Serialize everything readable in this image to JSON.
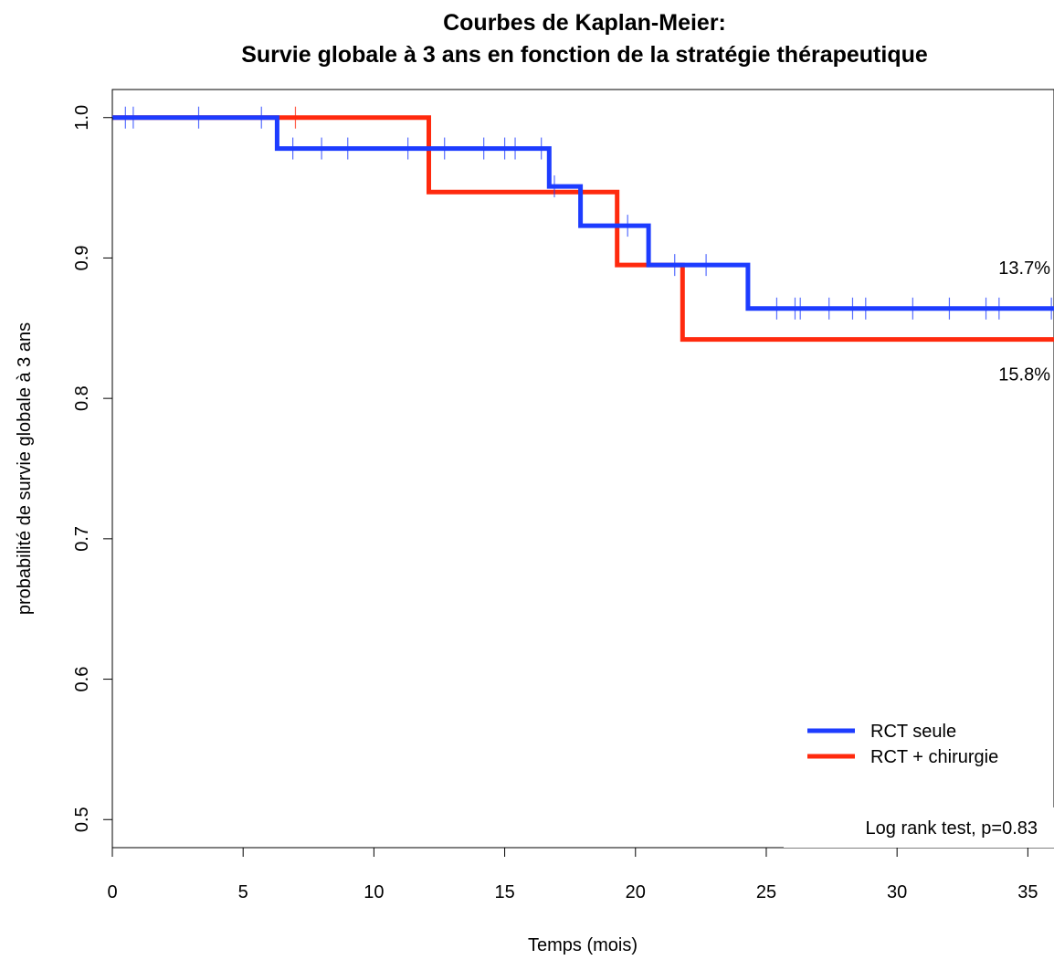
{
  "chart_data": {
    "type": "line",
    "title": "Courbes de Kaplan-Meier:",
    "subtitle": "Survie globale à 3 ans en fonction de la stratégie thérapeutique",
    "xlabel": "Temps (mois)",
    "ylabel": "probabilité de survie globale à 3 ans",
    "xlim": [
      0,
      36
    ],
    "ylim": [
      0.48,
      1.02
    ],
    "x_ticks": [
      0,
      5,
      10,
      15,
      20,
      25,
      30,
      35
    ],
    "y_ticks": [
      0.5,
      0.6,
      0.7,
      0.8,
      0.9,
      1.0
    ],
    "y_tick_labels": [
      "0.5",
      "0.6",
      "0.7",
      "0.8",
      "0.9",
      "1.0"
    ],
    "grid": false,
    "legend_position": "bottom-right",
    "series": [
      {
        "name": "RCT seule",
        "color": "#1d3cff",
        "steps": [
          [
            0,
            1.0
          ],
          [
            6.3,
            0.978
          ],
          [
            16.7,
            0.951
          ],
          [
            17.9,
            0.923
          ],
          [
            20.5,
            0.895
          ],
          [
            24.3,
            0.864
          ],
          [
            36,
            0.864
          ]
        ],
        "censors": [
          [
            0.5,
            1.0
          ],
          [
            0.8,
            1.0
          ],
          [
            3.3,
            1.0
          ],
          [
            5.7,
            1.0
          ],
          [
            6.9,
            0.978
          ],
          [
            8.0,
            0.978
          ],
          [
            9.0,
            0.978
          ],
          [
            11.3,
            0.978
          ],
          [
            12.7,
            0.978
          ],
          [
            14.2,
            0.978
          ],
          [
            15.0,
            0.978
          ],
          [
            15.4,
            0.978
          ],
          [
            16.4,
            0.978
          ],
          [
            16.9,
            0.951
          ],
          [
            19.7,
            0.923
          ],
          [
            21.5,
            0.895
          ],
          [
            22.7,
            0.895
          ],
          [
            25.4,
            0.864
          ],
          [
            26.1,
            0.864
          ],
          [
            26.3,
            0.864
          ],
          [
            27.4,
            0.864
          ],
          [
            28.3,
            0.864
          ],
          [
            28.8,
            0.864
          ],
          [
            30.6,
            0.864
          ],
          [
            32.0,
            0.864
          ],
          [
            33.4,
            0.864
          ],
          [
            33.9,
            0.864
          ],
          [
            35.9,
            0.864
          ]
        ],
        "end_label": "13.7%"
      },
      {
        "name": "RCT + chirurgie",
        "color": "#ff2a0e",
        "steps": [
          [
            0,
            1.0
          ],
          [
            12.1,
            0.947
          ],
          [
            19.3,
            0.895
          ],
          [
            21.8,
            0.842
          ],
          [
            36,
            0.842
          ]
        ],
        "censors": [
          [
            7.0,
            1.0
          ]
        ],
        "end_label": "15.8%"
      }
    ],
    "annotation": "Log rank test, p=0.83"
  }
}
